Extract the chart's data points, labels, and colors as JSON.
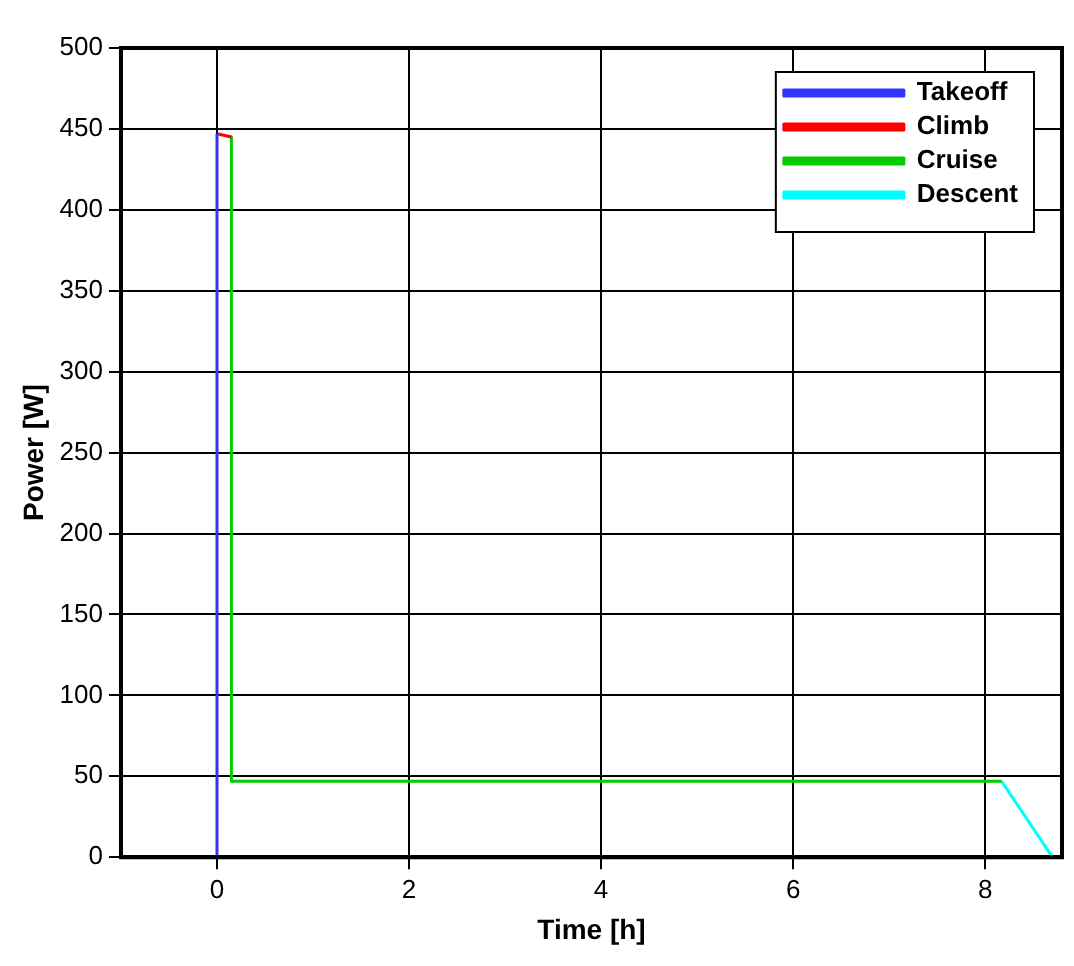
{
  "chart_data": {
    "type": "line",
    "xlabel": "Time [h]",
    "ylabel": "Power [W]",
    "series": [
      {
        "name": "Takeoff",
        "color": "#3333ff",
        "x": [
          0,
          0
        ],
        "values": [
          0,
          447
        ]
      },
      {
        "name": "Climb",
        "color": "#ff0000",
        "x": [
          0,
          0.15
        ],
        "values": [
          447,
          445
        ]
      },
      {
        "name": "Cruise",
        "color": "#00cc00",
        "x": [
          0.15,
          0.15,
          8.17
        ],
        "values": [
          445,
          47,
          47
        ]
      },
      {
        "name": "Descent",
        "color": "#00ffff",
        "x": [
          8.17,
          8.7
        ],
        "values": [
          47,
          0
        ]
      }
    ],
    "xlim": [
      -1,
      8.8
    ],
    "xticks": [
      0,
      2,
      4,
      6,
      8
    ],
    "ylim": [
      0,
      500
    ],
    "yticks": [
      0,
      50,
      100,
      150,
      200,
      250,
      300,
      350,
      400,
      450,
      500
    ],
    "grid": true,
    "legend": "top right",
    "marker": "none",
    "line_style": "solid"
  }
}
